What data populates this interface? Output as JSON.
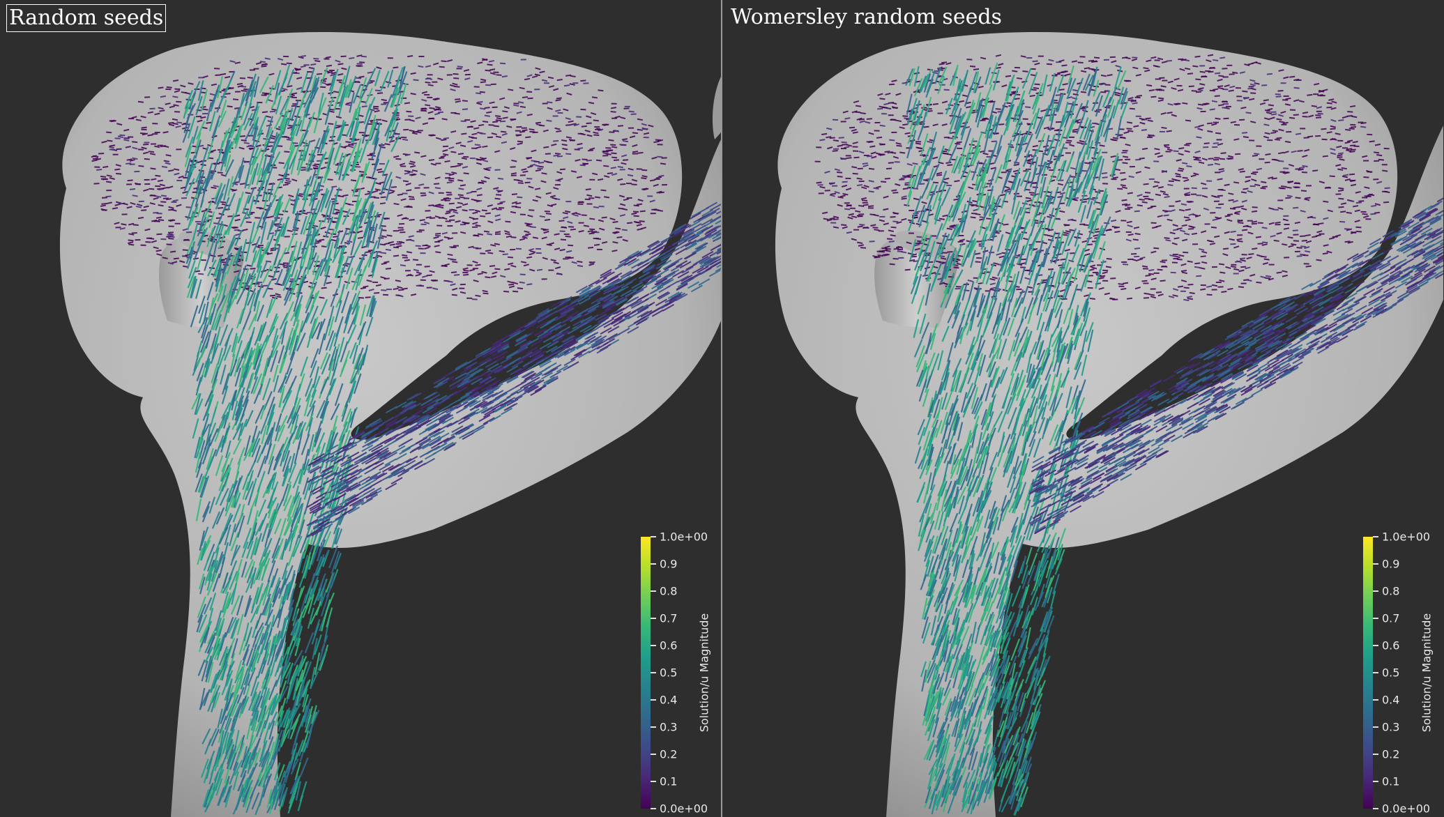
{
  "views": [
    {
      "title": "Random seeds",
      "active": true,
      "colorbar": {
        "title": "Solution/u Magnitude",
        "min_label": "0.0e+00",
        "max_label": "1.0e+00",
        "ticks": [
          "0.1",
          "0.2",
          "0.3",
          "0.4",
          "0.5",
          "0.6",
          "0.7",
          "0.8",
          "0.9"
        ],
        "colormap": "viridis"
      }
    },
    {
      "title": "Womersley random seeds",
      "active": false,
      "colorbar": {
        "title": "Solution/u Magnitude",
        "min_label": "0.0e+00",
        "max_label": "1.0e+00",
        "ticks": [
          "0.1",
          "0.2",
          "0.3",
          "0.4",
          "0.5",
          "0.6",
          "0.7",
          "0.8",
          "0.9"
        ],
        "colormap": "viridis"
      }
    }
  ],
  "colors": {
    "background": "#2e2e2e",
    "vessel_surface": "#b9b9b9",
    "divider": "#9a9a9a",
    "low_velocity": "#440154",
    "mid_velocity": "#31688e",
    "high_velocity": "#35b779"
  }
}
